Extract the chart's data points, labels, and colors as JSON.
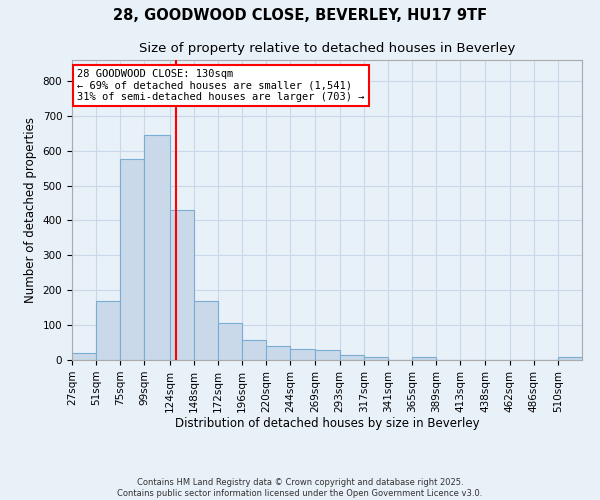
{
  "title_line1": "28, GOODWOOD CLOSE, BEVERLEY, HU17 9TF",
  "title_line2": "Size of property relative to detached houses in Beverley",
  "xlabel": "Distribution of detached houses by size in Beverley",
  "ylabel": "Number of detached properties",
  "bin_labels": [
    "27sqm",
    "51sqm",
    "75sqm",
    "99sqm",
    "124sqm",
    "148sqm",
    "172sqm",
    "196sqm",
    "220sqm",
    "244sqm",
    "269sqm",
    "293sqm",
    "317sqm",
    "341sqm",
    "365sqm",
    "389sqm",
    "413sqm",
    "438sqm",
    "462sqm",
    "486sqm",
    "510sqm"
  ],
  "bin_edges": [
    27,
    51,
    75,
    99,
    124,
    148,
    172,
    196,
    220,
    244,
    269,
    293,
    317,
    341,
    365,
    389,
    413,
    438,
    462,
    486,
    510
  ],
  "bar_heights": [
    20,
    170,
    575,
    645,
    430,
    170,
    105,
    57,
    40,
    32,
    30,
    13,
    10,
    0,
    8,
    0,
    0,
    0,
    0,
    0,
    8
  ],
  "bar_color": "#c9d9ea",
  "bar_edgecolor": "#7aadd4",
  "vline_x": 130,
  "vline_color": "red",
  "annotation_text": "28 GOODWOOD CLOSE: 130sqm\n← 69% of detached houses are smaller (1,541)\n31% of semi-detached houses are larger (703) →",
  "annotation_box_edgecolor": "red",
  "annotation_fontsize": 7.5,
  "yticks": [
    0,
    100,
    200,
    300,
    400,
    500,
    600,
    700,
    800
  ],
  "ylim": [
    0,
    860
  ],
  "grid_color": "#c8d8e8",
  "background_color": "#e8f0f8",
  "axes_background": "#e8f0f8",
  "footer_line1": "Contains HM Land Registry data © Crown copyright and database right 2025.",
  "footer_line2": "Contains public sector information licensed under the Open Government Licence v3.0.",
  "title_fontsize": 10.5,
  "subtitle_fontsize": 9.5,
  "xlabel_fontsize": 8.5,
  "ylabel_fontsize": 8.5,
  "tick_fontsize": 7.5,
  "footer_fontsize": 6.0
}
